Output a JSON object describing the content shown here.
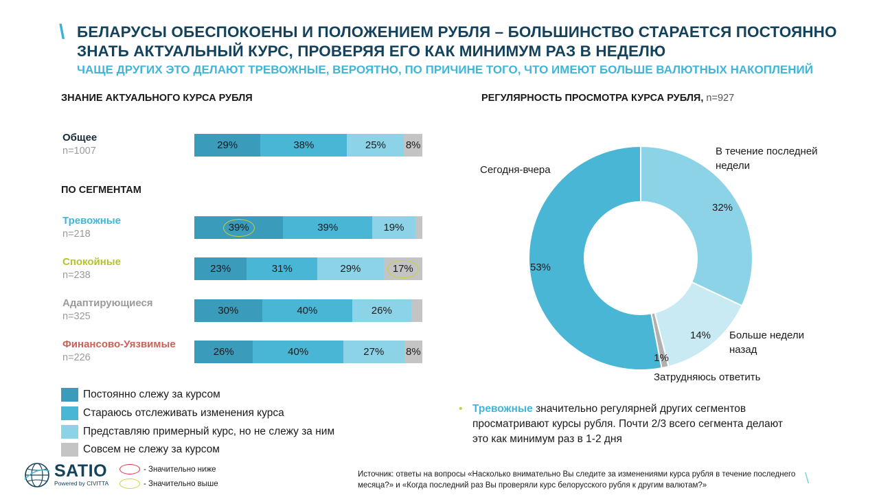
{
  "header": {
    "slash": "\\",
    "title": "БЕЛАРУСЫ ОБЕСПОКОЕНЫ И ПОЛОЖЕНИЕМ РУБЛЯ – БОЛЬШИНСТВО СТАРАЕТСЯ ПОСТОЯННО ЗНАТЬ АКТУАЛЬНЫЙ КУРС, ПРОВЕРЯЯ ЕГО КАК МИНИМУМ РАЗ В НЕДЕЛЮ",
    "subtitle": "ЧАЩЕ ДРУГИХ ЭТО ДЕЛАЮТ ТРЕВОЖНЫЕ, ВЕРОЯТНО, ПО ПРИЧИНЕ ТОГО, ЧТО ИМЕЮТ БОЛЬШЕ ВАЛЮТНЫХ НАКОПЛЕНИЙ"
  },
  "left": {
    "heading": "ЗНАНИЕ АКТУАЛЬНОГО КУРСА РУБЛЯ",
    "segments_heading": "ПО СЕГМЕНТАМ"
  },
  "right": {
    "heading": "РЕГУЛЯРНОСТЬ ПРОСМОТРА КУРСА РУБЛЯ,",
    "heading_n": "n=927"
  },
  "note": {
    "bullet": "•",
    "accent": "Тревожные",
    "text": " значительно регулярней других сегментов просматривают курсы рубля. Почти 2/3 всего сегмента делают это как минимум раз в 1-2 дня"
  },
  "source": "Источник: ответы на вопросы «Насколько внимательно  Вы следите за изменениями курса рубля в течение последнего месяца?» и «Когда последний раз Вы проверяли курс белорусского рубля к другим валютам?»",
  "bottom_slash": "\\",
  "logo": {
    "name": "SATIO",
    "sub": "Powered by CIVITTA"
  },
  "significance_key": {
    "lower": "- Значительно ниже",
    "higher": "- Значительно выше",
    "lower_color": "#e0303a",
    "higher_color": "#c8d23a"
  },
  "colors": {
    "series": [
      "#3a9bbb",
      "#49b6d6",
      "#8dd3e7",
      "#c4c4c4"
    ],
    "title": "#14425c",
    "accent": "#41b5d6"
  },
  "chart_data": [
    {
      "type": "bar",
      "stacked": true,
      "orientation": "horizontal",
      "title": "ЗНАНИЕ АКТУАЛЬНОГО КУРСА РУБЛЯ",
      "legend_position": "bottom-left",
      "series_names": [
        "Постоянно слежу за курсом",
        "Стараюсь отслеживать изменения курса",
        "Представляю примерный курс, но не слежу за ним",
        "Совсем не слежу за курсом"
      ],
      "rows": [
        {
          "name": "Общее",
          "n": "n=1007",
          "name_color": "#1a2a3a",
          "values": [
            29,
            38,
            25,
            8
          ],
          "labels": [
            "29%",
            "38%",
            "25%",
            "8%"
          ],
          "highlights": [
            null,
            null,
            null,
            null
          ]
        },
        {
          "name": "Тревожные",
          "n": "n=218",
          "name_color": "#41b5d6",
          "values": [
            39,
            39,
            19,
            3
          ],
          "labels": [
            "39%",
            "39%",
            "19%",
            ""
          ],
          "highlights": [
            "high",
            null,
            null,
            null
          ]
        },
        {
          "name": "Спокойные",
          "n": "n=238",
          "name_color": "#b5c230",
          "values": [
            23,
            31,
            29,
            17
          ],
          "labels": [
            "23%",
            "31%",
            "29%",
            "17%"
          ],
          "highlights": [
            null,
            null,
            null,
            "high"
          ]
        },
        {
          "name": "Адаптирующиеся",
          "n": "n=325",
          "name_color": "#9a9a9a",
          "values": [
            30,
            40,
            26,
            5
          ],
          "labels": [
            "30%",
            "40%",
            "26%",
            ""
          ],
          "highlights": [
            null,
            null,
            null,
            null
          ]
        },
        {
          "name": "Финансово-Уязвимые",
          "n": "n=226",
          "name_color": "#c9605a",
          "values": [
            26,
            40,
            27,
            8
          ],
          "labels": [
            "26%",
            "40%",
            "27%",
            "8%"
          ],
          "highlights": [
            null,
            null,
            null,
            null
          ]
        }
      ]
    },
    {
      "type": "pie",
      "donut": true,
      "title": "РЕГУЛЯРНОСТЬ ПРОСМОТРА КУРСА РУБЛЯ, n=927",
      "slices": [
        {
          "label": "В течение последней недели",
          "value": 32,
          "value_label": "32%",
          "color": "#8dd3e7"
        },
        {
          "label": "Больше недели назад",
          "value": 14,
          "value_label": "14%",
          "color": "#c9e9f3"
        },
        {
          "label": "Затрудняюсь ответить",
          "value": 1,
          "value_label": "1%",
          "color": "#b0b0b0"
        },
        {
          "label": "Сегодня-вчера",
          "value": 53,
          "value_label": "53%",
          "color": "#49b6d6"
        }
      ]
    }
  ]
}
